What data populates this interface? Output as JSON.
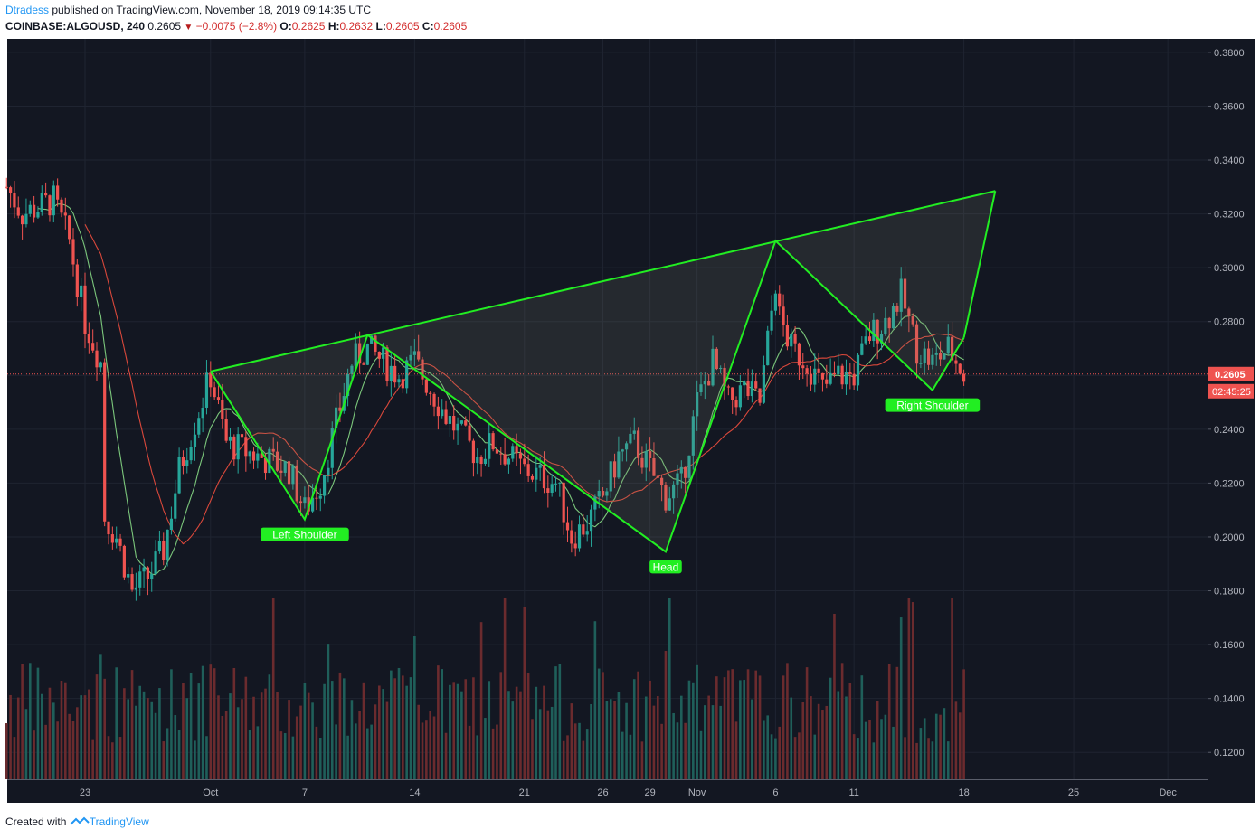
{
  "header": {
    "author": "Dtradess",
    "published_text": "published on TradingView.com, November 18, 2019 09:14:35 UTC",
    "symbol": "COINBASE:ALGOUSD, 240",
    "last": "0.2605",
    "change": "−0.0075 (−2.8%)",
    "o_label": "O:",
    "o_value": "0.2625",
    "h_label": "H:",
    "h_value": "0.2632",
    "l_label": "L:",
    "l_value": "0.2605",
    "c_label": "C:",
    "c_value": "0.2605"
  },
  "footer": {
    "created_with": "Created with",
    "brand": "TradingView"
  },
  "price_tag": {
    "value": "0.2605",
    "countdown": "02:45:25"
  },
  "colors": {
    "background": "#131722",
    "up": "#26a69a",
    "down": "#ef5350",
    "pattern": "#22ee22",
    "ma_fast": "#7bc67b",
    "ma_slow": "#d9483b"
  },
  "chart_data": {
    "type": "candlestick",
    "ylim": [
      0.11,
      0.385
    ],
    "y_ticks": [
      "0.3800",
      "0.3600",
      "0.3400",
      "0.3200",
      "0.3000",
      "0.2800",
      "0.2600",
      "0.2400",
      "0.2200",
      "0.2000",
      "0.1800",
      "0.1600",
      "0.1400",
      "0.1200"
    ],
    "x_ticks": [
      "23",
      "Oct",
      "7",
      "14",
      "21",
      "26",
      "29",
      "Nov",
      "6",
      "11",
      "18",
      "25",
      "Dec"
    ],
    "price_path": [
      {
        "date": "Sep 18",
        "price": 0.33
      },
      {
        "date": "Sep 19",
        "price": 0.32
      },
      {
        "date": "Sep 21",
        "price": 0.325
      },
      {
        "date": "Sep 22",
        "price": 0.31
      },
      {
        "date": "Sep 23",
        "price": 0.28
      },
      {
        "date": "Sep 24",
        "price": 0.265
      },
      {
        "date": "Sep 24",
        "price": 0.21
      },
      {
        "date": "Sep 25",
        "price": 0.2
      },
      {
        "date": "Sep 26",
        "price": 0.18
      },
      {
        "date": "Sep 27",
        "price": 0.185
      },
      {
        "date": "Sep 28",
        "price": 0.195
      },
      {
        "date": "Sep 29",
        "price": 0.225
      },
      {
        "date": "Oct 1",
        "price": 0.26
      },
      {
        "date": "Oct 2",
        "price": 0.235
      },
      {
        "date": "Oct 4",
        "price": 0.23
      },
      {
        "date": "Oct 6",
        "price": 0.225
      },
      {
        "date": "Oct 7",
        "price": 0.21
      },
      {
        "date": "Oct 8",
        "price": 0.22
      },
      {
        "date": "Oct 10",
        "price": 0.265
      },
      {
        "date": "Oct 11",
        "price": 0.27
      },
      {
        "date": "Oct 13",
        "price": 0.26
      },
      {
        "date": "Oct 14",
        "price": 0.265
      },
      {
        "date": "Oct 16",
        "price": 0.245
      },
      {
        "date": "Oct 18",
        "price": 0.23
      },
      {
        "date": "Oct 19",
        "price": 0.235
      },
      {
        "date": "Oct 21",
        "price": 0.225
      },
      {
        "date": "Oct 23",
        "price": 0.22
      },
      {
        "date": "Oct 24",
        "price": 0.2
      },
      {
        "date": "Oct 25",
        "price": 0.205
      },
      {
        "date": "Oct 26",
        "price": 0.215
      },
      {
        "date": "Oct 27",
        "price": 0.23
      },
      {
        "date": "Oct 28",
        "price": 0.235
      },
      {
        "date": "Oct 29",
        "price": 0.225
      },
      {
        "date": "Oct 30",
        "price": 0.215
      },
      {
        "date": "Oct 31",
        "price": 0.22
      },
      {
        "date": "Nov 1",
        "price": 0.25
      },
      {
        "date": "Nov 2",
        "price": 0.265
      },
      {
        "date": "Nov 3",
        "price": 0.25
      },
      {
        "date": "Nov 4",
        "price": 0.255
      },
      {
        "date": "Nov 5",
        "price": 0.25
      },
      {
        "date": "Nov 6",
        "price": 0.295
      },
      {
        "date": "Nov 6",
        "price": 0.285
      },
      {
        "date": "Nov 7",
        "price": 0.27
      },
      {
        "date": "Nov 8",
        "price": 0.265
      },
      {
        "date": "Nov 9",
        "price": 0.255
      },
      {
        "date": "Nov 10",
        "price": 0.26
      },
      {
        "date": "Nov 11",
        "price": 0.26
      },
      {
        "date": "Nov 12",
        "price": 0.275
      },
      {
        "date": "Nov 13",
        "price": 0.28
      },
      {
        "date": "Nov 14",
        "price": 0.29
      },
      {
        "date": "Nov 15",
        "price": 0.27
      },
      {
        "date": "Nov 16",
        "price": 0.265
      },
      {
        "date": "Nov 17",
        "price": 0.27
      },
      {
        "date": "Nov 18",
        "price": 0.2605
      }
    ],
    "pattern_points": [
      {
        "date": "Oct 1",
        "price": 0.2615
      },
      {
        "date": "Oct 7",
        "price": 0.2065
      },
      {
        "date": "Oct 11",
        "price": 0.275
      },
      {
        "date": "Oct 15",
        "price": 0.258
      },
      {
        "date": "Oct 30",
        "price": 0.1945
      },
      {
        "date": "Nov 6",
        "price": 0.31
      },
      {
        "date": "Nov 16",
        "price": 0.2545
      },
      {
        "date": "Nov 18",
        "price": 0.274
      }
    ],
    "neckline_end": {
      "date": "Nov 20",
      "price": 0.3285
    },
    "annotations": [
      {
        "text": "Left Shoulder"
      },
      {
        "text": "Head"
      },
      {
        "text": "Right Shoulder"
      }
    ]
  }
}
